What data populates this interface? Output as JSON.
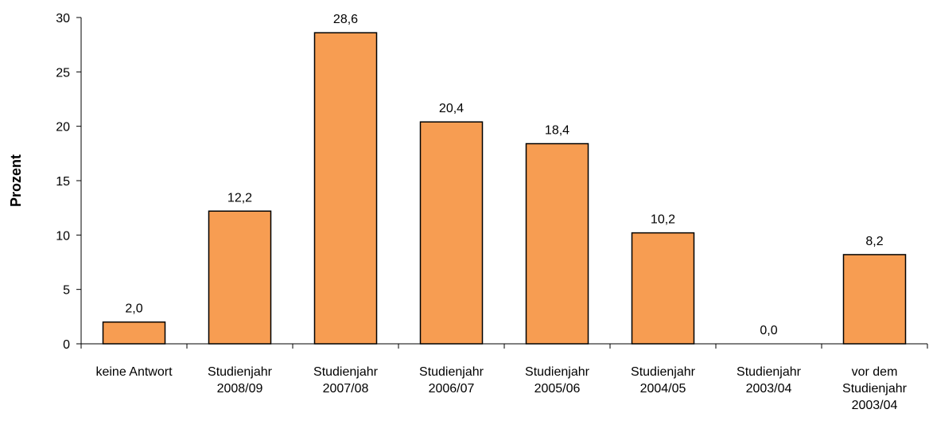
{
  "chart_data": {
    "type": "bar",
    "title": "",
    "xlabel": "",
    "ylabel": "Prozent",
    "ylim": [
      0,
      30
    ],
    "yticks": [
      "0",
      "5",
      "10",
      "15",
      "20",
      "25",
      "30"
    ],
    "grid": false,
    "legend": "none",
    "bar_color": "#F79D52",
    "categories": [
      [
        "keine Antwort"
      ],
      [
        "Studienjahr",
        "2008/09"
      ],
      [
        "Studienjahr",
        "2007/08"
      ],
      [
        "Studienjahr",
        "2006/07"
      ],
      [
        "Studienjahr",
        "2005/06"
      ],
      [
        "Studienjahr",
        "2004/05"
      ],
      [
        "Studienjahr",
        "2003/04"
      ],
      [
        "vor dem",
        "Studienjahr",
        "2003/04"
      ]
    ],
    "values": [
      2.0,
      12.2,
      28.6,
      20.4,
      18.4,
      10.2,
      0.0,
      8.2
    ],
    "value_labels": [
      "2,0",
      "12,2",
      "28,6",
      "20,4",
      "18,4",
      "10,2",
      "0,0",
      "8,2"
    ]
  }
}
